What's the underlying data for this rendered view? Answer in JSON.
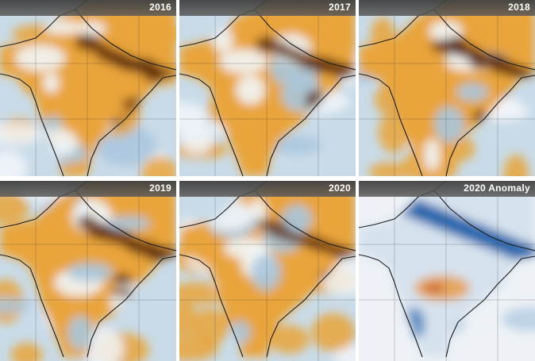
{
  "panels": [
    {
      "label": "2016",
      "type": "concentration",
      "intensity": 0.85
    },
    {
      "label": "2017",
      "type": "concentration",
      "intensity": 0.8
    },
    {
      "label": "2018",
      "type": "concentration",
      "intensity": 0.95
    },
    {
      "label": "2019",
      "type": "concentration",
      "intensity": 0.85
    },
    {
      "label": "2020",
      "type": "concentration",
      "intensity": 0.55
    },
    {
      "label": "2020 Anomaly",
      "type": "anomaly",
      "intensity": 0.8
    }
  ],
  "colors": {
    "low": "#f2f6fa",
    "light_blue": "#a9c7de",
    "orange": "#e9a43b",
    "dark_brown": "#5b2708",
    "anomaly_blue": "#1a5ea8",
    "anomaly_white": "#eef2f6",
    "anomaly_orange": "#e79b45",
    "label_bar": "#4a4a4a",
    "coast": "#1a1a1a"
  }
}
